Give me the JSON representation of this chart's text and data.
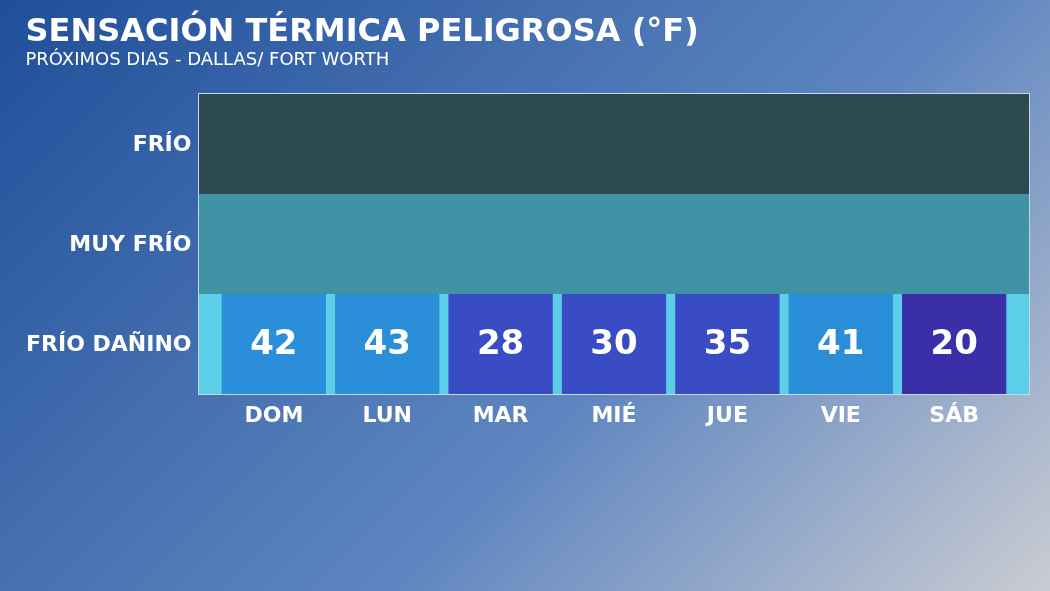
{
  "chart_data": {
    "type": "heatmap",
    "title": "SENSACIÓN TÉRMICA PELIGROSA (°F)",
    "subtitle": "PRÓXIMOS DIAS - DALLAS/ FORT WORTH",
    "categories": [
      "DOM",
      "LUN",
      "MAR",
      "MIÉ",
      "JUE",
      "VIE",
      "SÁB"
    ],
    "y_categories": [
      "FRÍO",
      "MUY FRÍO",
      "FRÍO DAÑINO"
    ],
    "cells": [
      [
        null,
        null,
        null,
        null,
        null,
        null,
        null
      ],
      [
        null,
        null,
        null,
        null,
        null,
        null,
        null
      ],
      [
        42,
        43,
        28,
        30,
        35,
        41,
        20
      ]
    ],
    "colors": [
      "#2b8ed8",
      "#2b8ed8",
      "#3a4cc4",
      "#3a4cc4",
      "#3a4cc4",
      "#2b8ed8",
      "#3a2fa8"
    ],
    "data_labels": true,
    "bands": [
      {
        "axis": "y",
        "from": "FRÍO",
        "to": "FRÍO",
        "color": "#2d4a50"
      },
      {
        "axis": "y",
        "from": "MUY FRÍO",
        "to": "MUY FRÍO",
        "color": "#3f93a4"
      },
      {
        "axis": "y",
        "from": "FRÍO DAÑINO",
        "to": "FRÍO DAÑINO",
        "color": "#5ccfe8"
      }
    ]
  }
}
